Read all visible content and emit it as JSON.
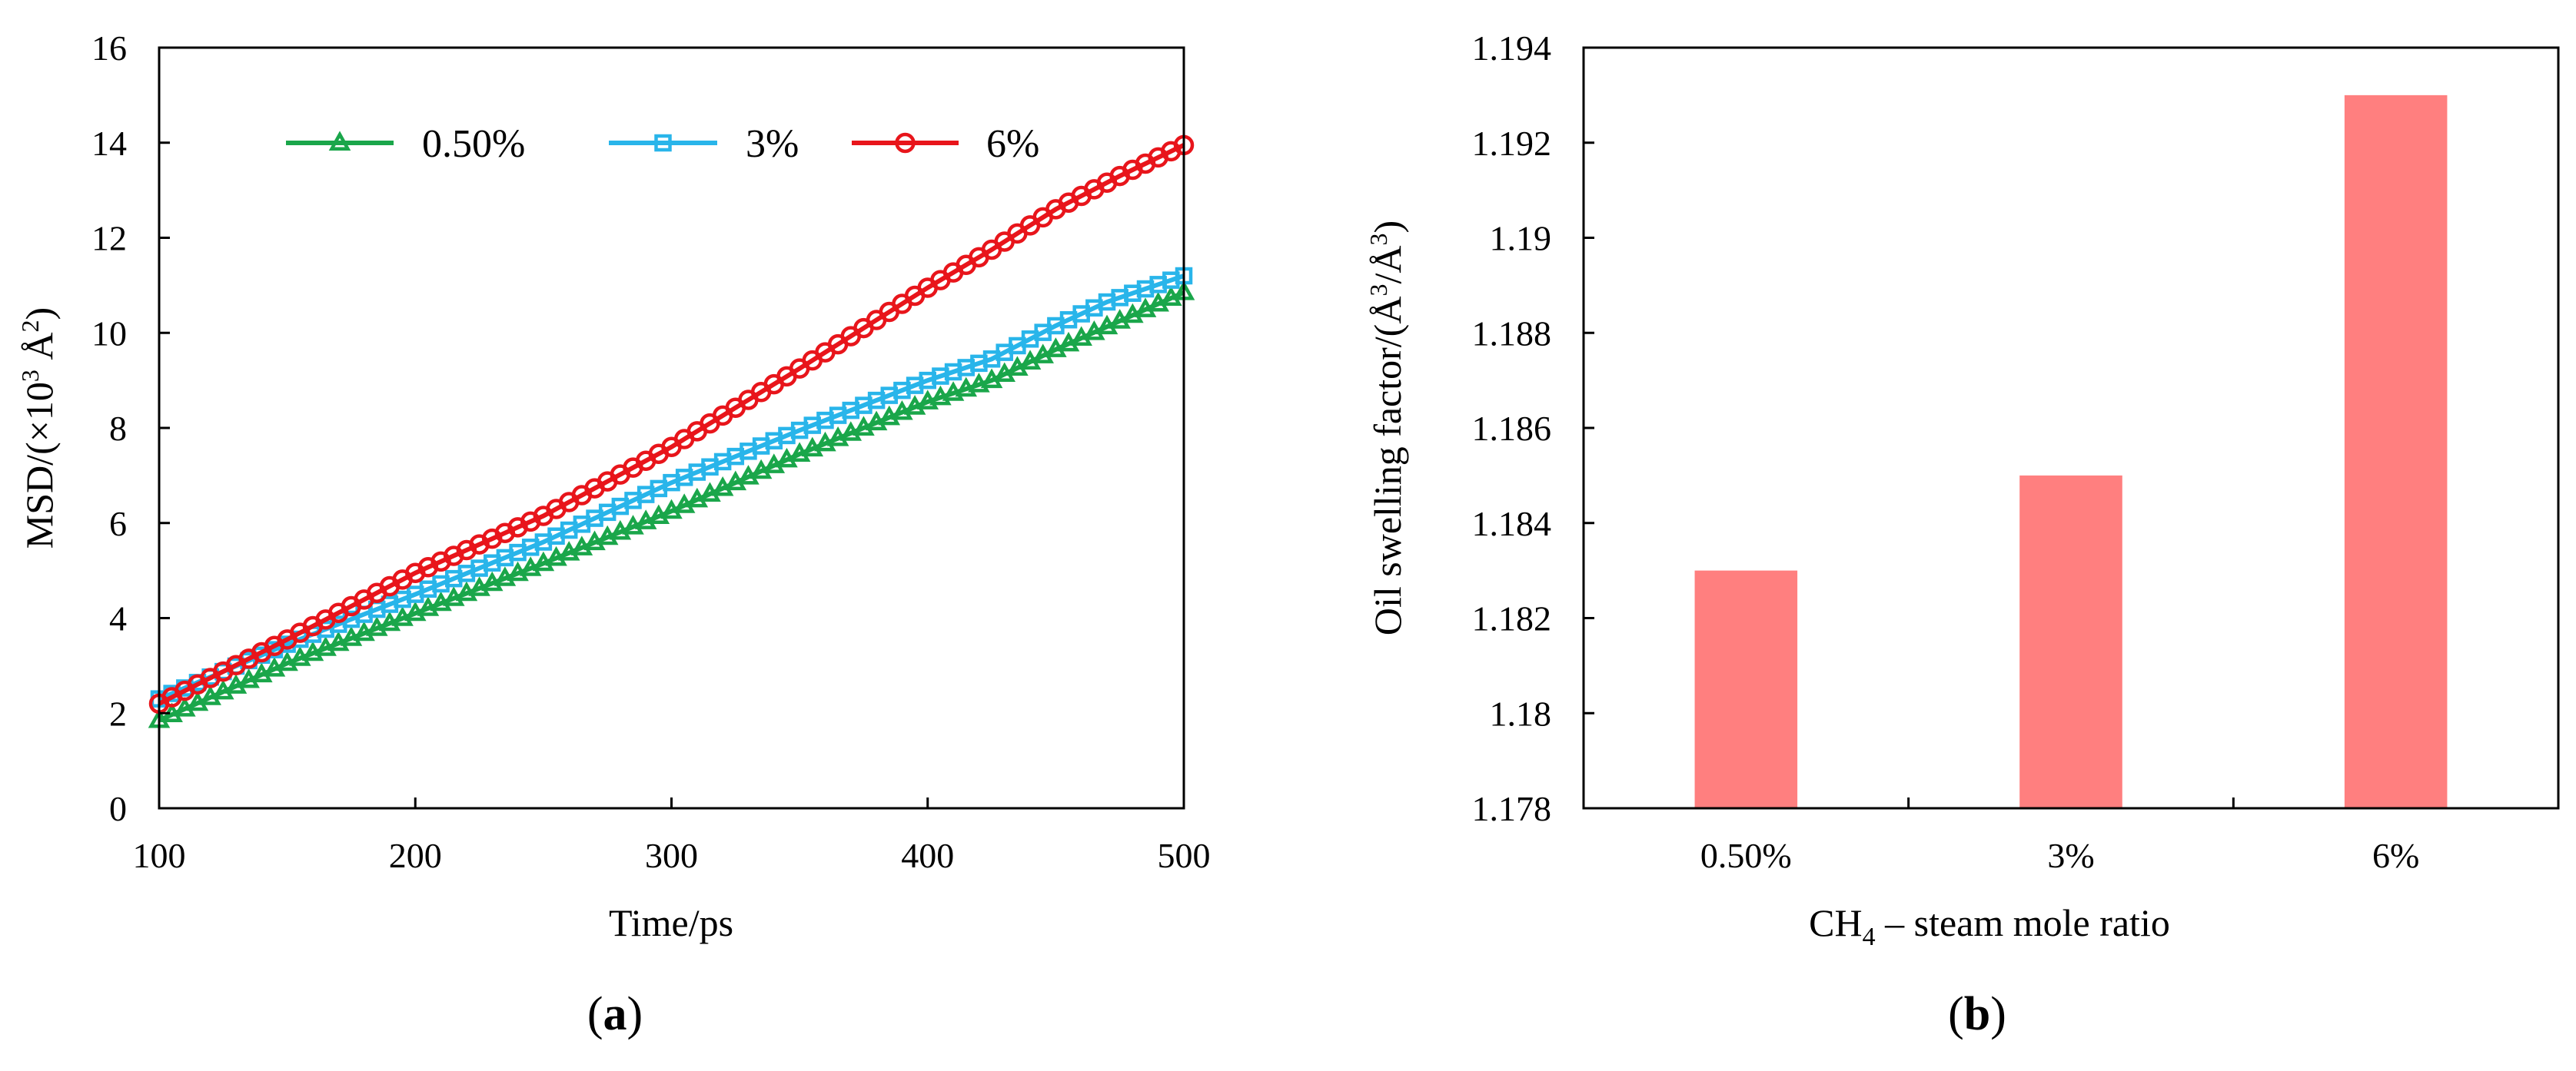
{
  "chart_data": [
    {
      "type": "line",
      "panel_label": {
        "open": "(",
        "letter": "a",
        "close": ")"
      },
      "xlabel": "Time/ps",
      "ylabel": {
        "prefix": "MSD/(×10",
        "sup1": "3",
        "mid": " Å",
        "sup2": "2",
        "suffix": ")"
      },
      "xlim": [
        100,
        500
      ],
      "ylim": [
        0,
        16
      ],
      "xticks": [
        100,
        200,
        300,
        400,
        500
      ],
      "yticks": [
        0,
        2,
        4,
        6,
        8,
        10,
        12,
        14,
        16
      ],
      "legend_position": "top",
      "x_step": 5,
      "series": [
        {
          "name": "0.50%",
          "color": "#1aa64a",
          "marker": "triangle",
          "anchors_x": [
            100,
            150,
            200,
            250,
            300,
            350,
            400,
            425,
            450,
            500
          ],
          "anchors_y": [
            1.85,
            3.05,
            4.1,
            5.15,
            6.25,
            7.45,
            8.55,
            9.0,
            9.65,
            10.85
          ]
        },
        {
          "name": "3%",
          "color": "#29b5ea",
          "marker": "square",
          "anchors_x": [
            100,
            150,
            200,
            250,
            300,
            350,
            400,
            425,
            450,
            470,
            500
          ],
          "anchors_y": [
            2.3,
            3.45,
            4.5,
            5.6,
            6.85,
            7.95,
            9.0,
            9.45,
            10.15,
            10.65,
            11.2
          ]
        },
        {
          "name": "6%",
          "color": "#e8151b",
          "marker": "circle",
          "anchors_x": [
            100,
            150,
            200,
            250,
            300,
            350,
            400,
            425,
            450,
            475,
            500
          ],
          "anchors_y": [
            2.2,
            3.55,
            4.95,
            6.15,
            7.6,
            9.25,
            10.95,
            11.75,
            12.6,
            13.3,
            13.95
          ]
        }
      ]
    },
    {
      "type": "bar",
      "panel_label": {
        "open": "(",
        "letter": "b",
        "close": ")"
      },
      "categories": [
        "0.50%",
        "3%",
        "6%"
      ],
      "values": [
        1.183,
        1.185,
        1.193
      ],
      "bar_color": "#ff7f7f",
      "ylim": [
        1.178,
        1.194
      ],
      "yticks": [
        "1.178",
        "1.18",
        "1.182",
        "1.184",
        "1.186",
        "1.188",
        "1.19",
        "1.192",
        "1.194"
      ],
      "ylabel": {
        "prefix": "Oil swelling factor/(Å",
        "sup1": "3",
        "mid": "/Å",
        "sup2": "3",
        "suffix": ")"
      },
      "xlabel": {
        "prefix": "CH",
        "sub": "4",
        "suffix": " – steam mole ratio"
      }
    }
  ]
}
